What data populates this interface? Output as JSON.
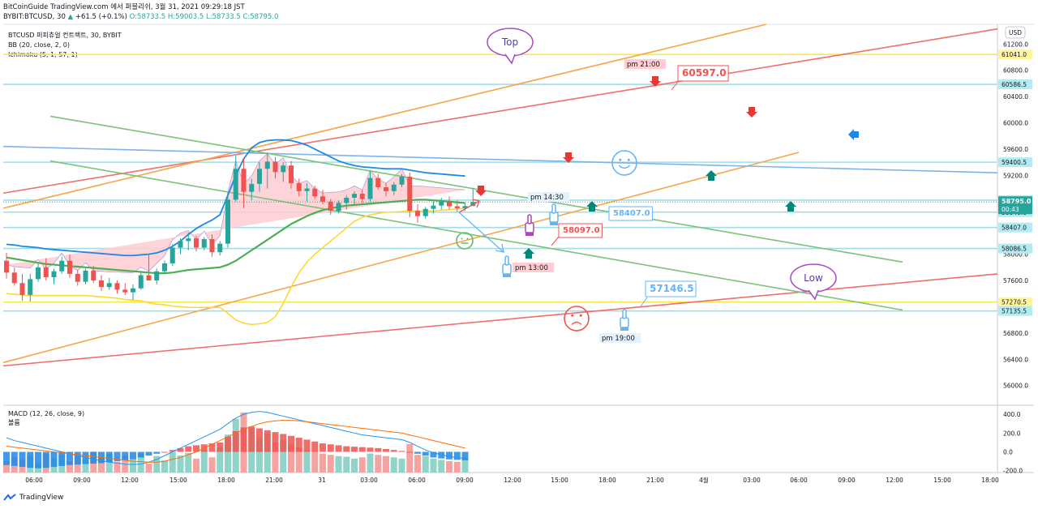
{
  "header": {
    "line1": "BitCoinGuide TradingView.com 에서 퍼블리쉬, 3월 31, 2021 09:29:18 JST",
    "symbol": "BYBIT:BTCUSD, 30",
    "change_arrow": "▲",
    "change": "+61.5 (+0.1%)",
    "o": "O:58733.5",
    "h": "H:59003.5",
    "l": "L:58733.5",
    "c": "C:58795.0",
    "price": "58795.0"
  },
  "legend": {
    "title": "BTCUSD 퍼피츄얼 컨트랙트, 30, BYBIT",
    "bb": "BB (20, close, 2, 0)",
    "ichimoku": "Ichimoku (5, 1, 57, 1)",
    "macd": "MACD (12, 26, close, 9)",
    "macd_sub": "볼륨"
  },
  "footer": {
    "brand": "TradingView"
  },
  "colors": {
    "up": "#26a69a",
    "down": "#ef5350",
    "bb": "#1e88e5",
    "kijun": "#4caf50",
    "tenkan": "#fdd835",
    "cloud": "#ffcdd2"
  },
  "chart_data": {
    "type": "candlestick",
    "title": "BTCUSD 퍼피츄얼 컨트랙트, 30, BYBIT",
    "currency": "USD",
    "ylim": [
      55700,
      61500
    ],
    "y_ticks": [
      56000,
      56400,
      56800,
      57200,
      57600,
      58000,
      58400,
      58800,
      59200,
      59600,
      60000,
      60400,
      60800,
      61200
    ],
    "x_ticks": [
      "06:00",
      "09:00",
      "12:00",
      "15:00",
      "18:00",
      "21:00",
      "31",
      "03:00",
      "06:00",
      "09:00",
      "12:00",
      "15:00",
      "18:00",
      "21:00",
      "4월",
      "03:00",
      "06:00",
      "09:00",
      "12:00",
      "15:00",
      "18:00"
    ],
    "last_price_label": "58795.0",
    "countdown": "00:43",
    "price_tags": [
      "61041.0",
      "60586.5",
      "59400.5",
      "58823.5",
      "58640.0",
      "58407.0",
      "58086.5",
      "57270.5",
      "57135.5"
    ],
    "candles": [
      {
        "o": 57900,
        "h": 58020,
        "l": 57630,
        "c": 57720
      },
      {
        "o": 57720,
        "h": 57800,
        "l": 57520,
        "c": 57560
      },
      {
        "o": 57560,
        "h": 57700,
        "l": 57290,
        "c": 57380
      },
      {
        "o": 57380,
        "h": 57700,
        "l": 57280,
        "c": 57620
      },
      {
        "o": 57620,
        "h": 57860,
        "l": 57580,
        "c": 57800
      },
      {
        "o": 57800,
        "h": 57940,
        "l": 57600,
        "c": 57650
      },
      {
        "o": 57650,
        "h": 57780,
        "l": 57540,
        "c": 57740
      },
      {
        "o": 57740,
        "h": 57960,
        "l": 57700,
        "c": 57900
      },
      {
        "o": 57900,
        "h": 58000,
        "l": 57640,
        "c": 57700
      },
      {
        "o": 57700,
        "h": 57760,
        "l": 57520,
        "c": 57580
      },
      {
        "o": 57580,
        "h": 57780,
        "l": 57540,
        "c": 57750
      },
      {
        "o": 57750,
        "h": 57820,
        "l": 57560,
        "c": 57600
      },
      {
        "o": 57600,
        "h": 57680,
        "l": 57440,
        "c": 57500
      },
      {
        "o": 57500,
        "h": 57640,
        "l": 57460,
        "c": 57560
      },
      {
        "o": 57560,
        "h": 57600,
        "l": 57400,
        "c": 57460
      },
      {
        "o": 57460,
        "h": 57560,
        "l": 57380,
        "c": 57420
      },
      {
        "o": 57420,
        "h": 57540,
        "l": 57300,
        "c": 57480
      },
      {
        "o": 57480,
        "h": 57720,
        "l": 57460,
        "c": 57680
      },
      {
        "o": 57680,
        "h": 58000,
        "l": 57640,
        "c": 57600
      },
      {
        "o": 57600,
        "h": 57780,
        "l": 57540,
        "c": 57740
      },
      {
        "o": 57740,
        "h": 57900,
        "l": 57700,
        "c": 57860
      },
      {
        "o": 57860,
        "h": 58150,
        "l": 57820,
        "c": 58100
      },
      {
        "o": 58100,
        "h": 58240,
        "l": 58000,
        "c": 58200
      },
      {
        "o": 58200,
        "h": 58330,
        "l": 58060,
        "c": 58240
      },
      {
        "o": 58240,
        "h": 58280,
        "l": 58040,
        "c": 58100
      },
      {
        "o": 58100,
        "h": 58260,
        "l": 58060,
        "c": 58230
      },
      {
        "o": 58230,
        "h": 58300,
        "l": 57960,
        "c": 58030
      },
      {
        "o": 58030,
        "h": 58200,
        "l": 57980,
        "c": 58160
      },
      {
        "o": 58160,
        "h": 58900,
        "l": 58100,
        "c": 58830
      },
      {
        "o": 58830,
        "h": 59500,
        "l": 58800,
        "c": 59300
      },
      {
        "o": 59300,
        "h": 59450,
        "l": 58700,
        "c": 58950
      },
      {
        "o": 58950,
        "h": 59150,
        "l": 58820,
        "c": 59070
      },
      {
        "o": 59070,
        "h": 59400,
        "l": 58950,
        "c": 59300
      },
      {
        "o": 59300,
        "h": 59550,
        "l": 59000,
        "c": 59410
      },
      {
        "o": 59410,
        "h": 59480,
        "l": 59150,
        "c": 59250
      },
      {
        "o": 59250,
        "h": 59400,
        "l": 59100,
        "c": 59350
      },
      {
        "o": 59350,
        "h": 59420,
        "l": 59000,
        "c": 59080
      },
      {
        "o": 59080,
        "h": 59150,
        "l": 58880,
        "c": 58960
      },
      {
        "o": 58960,
        "h": 59080,
        "l": 58800,
        "c": 59000
      },
      {
        "o": 59000,
        "h": 59040,
        "l": 58840,
        "c": 58880
      },
      {
        "o": 58880,
        "h": 58980,
        "l": 58760,
        "c": 58800
      },
      {
        "o": 58800,
        "h": 58840,
        "l": 58600,
        "c": 58660
      },
      {
        "o": 58660,
        "h": 58820,
        "l": 58620,
        "c": 58780
      },
      {
        "o": 58780,
        "h": 58900,
        "l": 58680,
        "c": 58860
      },
      {
        "o": 58860,
        "h": 58960,
        "l": 58760,
        "c": 58920
      },
      {
        "o": 58920,
        "h": 58980,
        "l": 58780,
        "c": 58840
      },
      {
        "o": 58840,
        "h": 59260,
        "l": 58800,
        "c": 59160
      },
      {
        "o": 59160,
        "h": 59220,
        "l": 58980,
        "c": 59020
      },
      {
        "o": 59020,
        "h": 59080,
        "l": 58880,
        "c": 58960
      },
      {
        "o": 58960,
        "h": 59100,
        "l": 58900,
        "c": 59060
      },
      {
        "o": 59060,
        "h": 59220,
        "l": 59020,
        "c": 59180
      },
      {
        "o": 59180,
        "h": 59240,
        "l": 58560,
        "c": 58660
      },
      {
        "o": 58660,
        "h": 58760,
        "l": 58480,
        "c": 58580
      },
      {
        "o": 58580,
        "h": 58720,
        "l": 58540,
        "c": 58690
      },
      {
        "o": 58690,
        "h": 58800,
        "l": 58620,
        "c": 58740
      },
      {
        "o": 58740,
        "h": 58860,
        "l": 58680,
        "c": 58800
      },
      {
        "o": 58800,
        "h": 58880,
        "l": 58680,
        "c": 58730
      },
      {
        "o": 58730,
        "h": 58820,
        "l": 58640,
        "c": 58700
      },
      {
        "o": 58700,
        "h": 58780,
        "l": 58660,
        "c": 58733.5
      },
      {
        "o": 58733.5,
        "h": 59003.5,
        "l": 58733.5,
        "c": 58795
      }
    ],
    "bb_mid": [
      57700,
      57690,
      57680,
      57670,
      57660,
      57650,
      57640,
      57640,
      57640,
      57630,
      57630,
      57630,
      57620,
      57610,
      57610,
      57600,
      57600,
      57610,
      57620,
      57640,
      57670,
      57700,
      57740,
      57790,
      57830,
      57870,
      57900,
      57950,
      58050,
      58150,
      58240,
      58320,
      58400,
      58480,
      58550,
      58620,
      58680,
      58720,
      58760,
      58790,
      58810,
      58820,
      58830,
      58840,
      58850,
      58860,
      58870,
      58880,
      58890,
      58900,
      58910,
      58920,
      58920,
      58910,
      58900,
      58890,
      58880,
      58870,
      58860
    ],
    "bb_upper": [
      58150,
      58140,
      58120,
      58110,
      58100,
      58080,
      58070,
      58060,
      58050,
      58040,
      58030,
      58020,
      58010,
      58000,
      57990,
      57980,
      57980,
      57990,
      58000,
      58020,
      58060,
      58120,
      58200,
      58300,
      58390,
      58460,
      58520,
      58600,
      58900,
      59200,
      59450,
      59620,
      59700,
      59730,
      59740,
      59740,
      59730,
      59700,
      59660,
      59600,
      59540,
      59480,
      59420,
      59380,
      59350,
      59330,
      59320,
      59310,
      59300,
      59300,
      59300,
      59280,
      59260,
      59240,
      59230,
      59220,
      59210,
      59200,
      59190
    ],
    "bb_lower": [
      57250,
      57240,
      57230,
      57230,
      57220,
      57220,
      57210,
      57210,
      57220,
      57220,
      57230,
      57240,
      57240,
      57230,
      57230,
      57220,
      57230,
      57230,
      57240,
      57260,
      57280,
      57280,
      57280,
      57280,
      57270,
      57280,
      57280,
      57300,
      57200,
      57100,
      57030,
      57020,
      57100,
      57230,
      57360,
      57500,
      57630,
      57760,
      57860,
      57980,
      58080,
      58160,
      58240,
      58300,
      58350,
      58390,
      58420,
      58450,
      58480,
      58500,
      58520,
      58540,
      58560,
      58580,
      58570,
      58560,
      58550,
      58540,
      58530
    ],
    "series": [
      {
        "name": "Kijun",
        "values": [
          57950,
          57930,
          57910,
          57890,
          57870,
          57850,
          57840,
          57830,
          57820,
          57810,
          57800,
          57790,
          57780,
          57770,
          57760,
          57750,
          57740,
          57730,
          57720,
          57710,
          57710,
          57720,
          57740,
          57760,
          57770,
          57780,
          57790,
          57800,
          57840,
          57900,
          57980,
          58060,
          58140,
          58220,
          58300,
          58380,
          58460,
          58520,
          58580,
          58630,
          58670,
          58700,
          58720,
          58740,
          58750,
          58760,
          58770,
          58780,
          58790,
          58800,
          58810,
          58820,
          58830,
          58830,
          58820,
          58810,
          58800,
          58790,
          58780
        ]
      },
      {
        "name": "Tenkan",
        "values": [
          57400,
          57390,
          57380,
          57370,
          57370,
          57370,
          57370,
          57370,
          57370,
          57370,
          57370,
          57360,
          57350,
          57340,
          57330,
          57310,
          57300,
          57290,
          57260,
          57240,
          57230,
          57210,
          57200,
          57190,
          57190,
          57190,
          57190,
          57190,
          57100,
          57000,
          56950,
          56930,
          56940,
          56960,
          57050,
          57250,
          57500,
          57720,
          57880,
          58000,
          58100,
          58200,
          58300,
          58400,
          58500,
          58560,
          58600,
          58620,
          58640,
          58640,
          58650,
          58660,
          58660,
          58660,
          58660,
          58670,
          58680,
          58690,
          58700
        ]
      }
    ],
    "annotations": {
      "top_label": "Top",
      "low_label": "Low",
      "targets": [
        "60597.0",
        "58407.0",
        "58097.0",
        "57146.5"
      ],
      "times": [
        "pm 21:00",
        "pm 14:30",
        "pm 13:00",
        "pm 19:00"
      ],
      "moods": [
        "smile",
        "neutral",
        "sad"
      ]
    },
    "macd": {
      "title": "MACD (12, 26, close, 9)",
      "y_ticks": [
        400,
        200,
        0,
        -200
      ],
      "hist": [
        -140,
        -150,
        -160,
        -170,
        -175,
        -170,
        -160,
        -150,
        -140,
        -135,
        -130,
        -125,
        -120,
        -110,
        -100,
        -90,
        -80,
        -60,
        -40,
        -20,
        0,
        20,
        40,
        60,
        70,
        80,
        90,
        100,
        160,
        220,
        260,
        270,
        250,
        230,
        210,
        190,
        170,
        150,
        130,
        110,
        90,
        80,
        70,
        60,
        55,
        50,
        45,
        40,
        30,
        20,
        10,
        0,
        -20,
        -40,
        -60,
        -70,
        -80,
        -85,
        -90
      ],
      "macd_line": [
        150,
        120,
        100,
        80,
        60,
        40,
        20,
        0,
        -20,
        -40,
        -60,
        -80,
        -95,
        -110,
        -120,
        -130,
        -135,
        -130,
        -110,
        -80,
        -40,
        0,
        40,
        80,
        120,
        160,
        200,
        240,
        300,
        360,
        400,
        420,
        430,
        420,
        400,
        380,
        360,
        340,
        320,
        300,
        280,
        260,
        240,
        220,
        200,
        180,
        170,
        160,
        150,
        140,
        130,
        100,
        60,
        20,
        -10,
        -30,
        -50,
        -60,
        -70
      ],
      "signal_line": [
        60,
        50,
        40,
        30,
        20,
        10,
        0,
        -10,
        -20,
        -30,
        -40,
        -50,
        -60,
        -70,
        -80,
        -90,
        -100,
        -105,
        -110,
        -110,
        -100,
        -80,
        -60,
        -30,
        0,
        40,
        80,
        120,
        160,
        200,
        240,
        270,
        300,
        320,
        330,
        335,
        335,
        330,
        320,
        310,
        300,
        290,
        280,
        270,
        260,
        250,
        240,
        230,
        220,
        210,
        200,
        180,
        160,
        140,
        120,
        100,
        80,
        60,
        40
      ],
      "volume": [
        18,
        24,
        20,
        26,
        15,
        30,
        22,
        28,
        17,
        25,
        20,
        33,
        23,
        29,
        17,
        27,
        21,
        30,
        14,
        26,
        19,
        32,
        27,
        31,
        22,
        36,
        24,
        40,
        60,
        85,
        95,
        70,
        55,
        62,
        48,
        52,
        44,
        40,
        36,
        34,
        30,
        28,
        26,
        25,
        22,
        24,
        30,
        28,
        26,
        24,
        22,
        45,
        28,
        26,
        22,
        20,
        18,
        17,
        24
      ]
    }
  }
}
